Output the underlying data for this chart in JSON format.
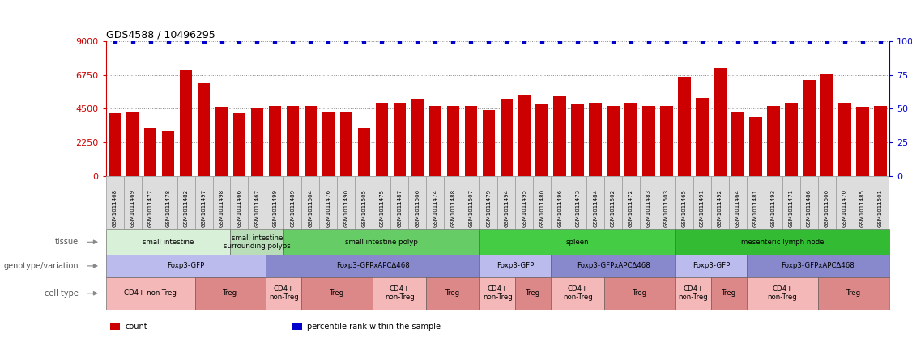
{
  "title": "GDS4588 / 10496295",
  "samples": [
    "GSM1011468",
    "GSM1011469",
    "GSM1011477",
    "GSM1011478",
    "GSM1011482",
    "GSM1011497",
    "GSM1011498",
    "GSM1011466",
    "GSM1011467",
    "GSM1011499",
    "GSM1011489",
    "GSM1011504",
    "GSM1011476",
    "GSM1011490",
    "GSM1011505",
    "GSM1011475",
    "GSM1011487",
    "GSM1011506",
    "GSM1011474",
    "GSM1011488",
    "GSM1011507",
    "GSM1011479",
    "GSM1011494",
    "GSM1011495",
    "GSM1011480",
    "GSM1011496",
    "GSM1011473",
    "GSM1011484",
    "GSM1011502",
    "GSM1011472",
    "GSM1011483",
    "GSM1011503",
    "GSM1011465",
    "GSM1011491",
    "GSM1011492",
    "GSM1011464",
    "GSM1011481",
    "GSM1011493",
    "GSM1011471",
    "GSM1011486",
    "GSM1011500",
    "GSM1011470",
    "GSM1011485",
    "GSM1011501"
  ],
  "counts": [
    4200,
    4250,
    3200,
    3000,
    7100,
    6200,
    4600,
    4200,
    4550,
    4700,
    4700,
    4700,
    4300,
    4300,
    3200,
    4900,
    4900,
    5100,
    4700,
    4700,
    4700,
    4400,
    5100,
    5400,
    4800,
    5300,
    4800,
    4900,
    4700,
    4900,
    4700,
    4700,
    6600,
    5200,
    7200,
    4300,
    3900,
    4700,
    4900,
    6400,
    6800,
    4850,
    4600,
    4700
  ],
  "percentile_ranks": [
    100,
    100,
    100,
    100,
    100,
    100,
    100,
    100,
    100,
    100,
    100,
    100,
    100,
    100,
    100,
    100,
    100,
    100,
    100,
    100,
    100,
    100,
    100,
    100,
    100,
    100,
    100,
    100,
    100,
    100,
    100,
    100,
    100,
    100,
    100,
    100,
    100,
    100,
    100,
    100,
    100,
    100,
    100,
    100
  ],
  "bar_color": "#cc0000",
  "dot_color": "#0000cc",
  "ylim_left": [
    0,
    9000
  ],
  "ylim_right": [
    0,
    100
  ],
  "yticks_left": [
    0,
    2250,
    4500,
    6750,
    9000
  ],
  "yticks_right": [
    0,
    25,
    50,
    75,
    100
  ],
  "tissue_rows": [
    {
      "label": "small intestine",
      "start": 0,
      "end": 7,
      "color": "#d8f0d8"
    },
    {
      "label": "small intestine\nsurrounding polyps",
      "start": 7,
      "end": 10,
      "color": "#b8ddb8"
    },
    {
      "label": "small intestine polyp",
      "start": 10,
      "end": 21,
      "color": "#66cc66"
    },
    {
      "label": "spleen",
      "start": 21,
      "end": 32,
      "color": "#44cc44"
    },
    {
      "label": "mesenteric lymph node",
      "start": 32,
      "end": 44,
      "color": "#33bb33"
    }
  ],
  "genotype_rows": [
    {
      "label": "Foxp3-GFP",
      "start": 0,
      "end": 9,
      "color": "#bbbbee"
    },
    {
      "label": "Foxp3-GFPxAPCΔ468",
      "start": 9,
      "end": 21,
      "color": "#8888cc"
    },
    {
      "label": "Foxp3-GFP",
      "start": 21,
      "end": 25,
      "color": "#bbbbee"
    },
    {
      "label": "Foxp3-GFPxAPCΔ468",
      "start": 25,
      "end": 32,
      "color": "#8888cc"
    },
    {
      "label": "Foxp3-GFP",
      "start": 32,
      "end": 36,
      "color": "#bbbbee"
    },
    {
      "label": "Foxp3-GFPxAPCΔ468",
      "start": 36,
      "end": 44,
      "color": "#8888cc"
    }
  ],
  "celltype_rows": [
    {
      "label": "CD4+ non-Treg",
      "start": 0,
      "end": 5,
      "color": "#f5b8b8"
    },
    {
      "label": "Treg",
      "start": 5,
      "end": 9,
      "color": "#dd8888"
    },
    {
      "label": "CD4+\nnon-Treg",
      "start": 9,
      "end": 11,
      "color": "#f5b8b8"
    },
    {
      "label": "Treg",
      "start": 11,
      "end": 15,
      "color": "#dd8888"
    },
    {
      "label": "CD4+\nnon-Treg",
      "start": 15,
      "end": 18,
      "color": "#f5b8b8"
    },
    {
      "label": "Treg",
      "start": 18,
      "end": 21,
      "color": "#dd8888"
    },
    {
      "label": "CD4+\nnon-Treg",
      "start": 21,
      "end": 23,
      "color": "#f5b8b8"
    },
    {
      "label": "Treg",
      "start": 23,
      "end": 25,
      "color": "#dd8888"
    },
    {
      "label": "CD4+\nnon-Treg",
      "start": 25,
      "end": 28,
      "color": "#f5b8b8"
    },
    {
      "label": "Treg",
      "start": 28,
      "end": 32,
      "color": "#dd8888"
    },
    {
      "label": "CD4+\nnon-Treg",
      "start": 32,
      "end": 34,
      "color": "#f5b8b8"
    },
    {
      "label": "Treg",
      "start": 34,
      "end": 36,
      "color": "#dd8888"
    },
    {
      "label": "CD4+\nnon-Treg",
      "start": 36,
      "end": 40,
      "color": "#f5b8b8"
    },
    {
      "label": "Treg",
      "start": 40,
      "end": 44,
      "color": "#dd8888"
    }
  ],
  "row_labels": [
    "tissue",
    "genotype/variation",
    "cell type"
  ],
  "legend_items": [
    {
      "color": "#cc0000",
      "label": "count"
    },
    {
      "color": "#0000cc",
      "label": "percentile rank within the sample"
    }
  ],
  "tick_box_color": "#dddddd",
  "tick_box_edge_color": "#999999",
  "fig_width": 11.26,
  "fig_height": 4.23,
  "dpi": 100
}
